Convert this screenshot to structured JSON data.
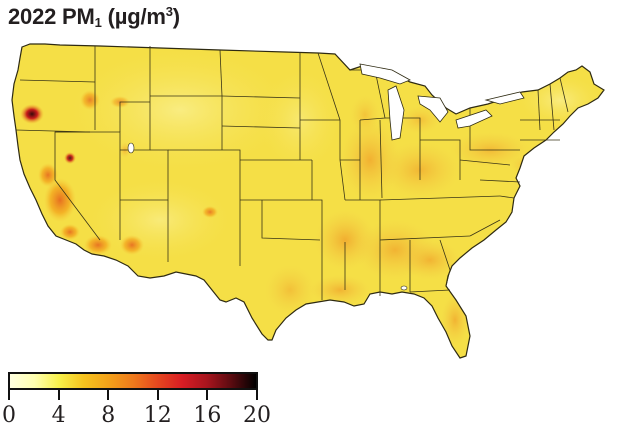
{
  "title": {
    "prefix": "2022 PM",
    "subscript": "1",
    "unit_open": " (µg/m",
    "unit_sup": "3",
    "unit_close": ")"
  },
  "colorbar": {
    "min": 0,
    "max": 20,
    "stops": [
      {
        "value": 0,
        "color": "#ffffe0"
      },
      {
        "value": 2,
        "color": "#ffffb0"
      },
      {
        "value": 4,
        "color": "#f7f04a"
      },
      {
        "value": 6,
        "color": "#f6c31e"
      },
      {
        "value": 8,
        "color": "#f3a21a"
      },
      {
        "value": 10,
        "color": "#ee7a1c"
      },
      {
        "value": 12,
        "color": "#e5481f"
      },
      {
        "value": 14,
        "color": "#d91d24"
      },
      {
        "value": 16,
        "color": "#a8151e"
      },
      {
        "value": 18,
        "color": "#5a0b10"
      },
      {
        "value": 20,
        "color": "#000000"
      }
    ],
    "ticks": [
      "0",
      "4",
      "8",
      "12",
      "16",
      "20"
    ]
  },
  "map": {
    "region": "Contiguous United States",
    "base_color": "#f5e04a",
    "border_color": "#3a3a1a",
    "water_color": "#ffffff"
  }
}
